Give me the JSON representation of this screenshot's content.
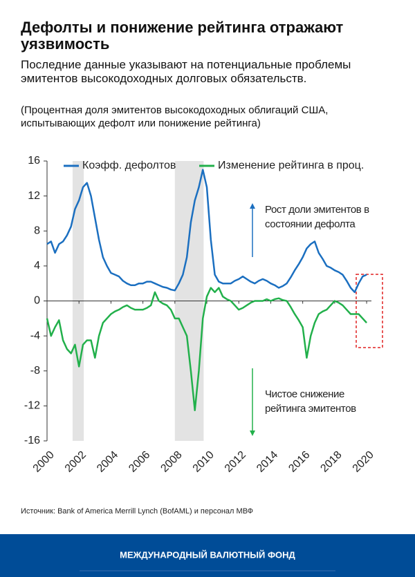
{
  "header": {
    "title": "Дефолты и понижение рейтинга отражают уязвимость",
    "subtitle": "Последние данные указывают на потенциальные проблемы эмитентов высокодоходных долговых обязательств.",
    "note": "(Процентная доля эмитентов высокодоходных облигаций США, испытывающих дефолт или понижение рейтинга)"
  },
  "chart_data": {
    "type": "line",
    "x": [
      2000,
      2000.25,
      2000.5,
      2000.75,
      2001,
      2001.25,
      2001.5,
      2001.75,
      2002,
      2002.25,
      2002.5,
      2002.75,
      2003,
      2003.25,
      2003.5,
      2003.75,
      2004,
      2004.25,
      2004.5,
      2004.75,
      2005,
      2005.25,
      2005.5,
      2005.75,
      2006,
      2006.25,
      2006.5,
      2006.75,
      2007,
      2007.25,
      2007.5,
      2007.75,
      2008,
      2008.25,
      2008.5,
      2008.75,
      2009,
      2009.25,
      2009.5,
      2009.75,
      2010,
      2010.25,
      2010.5,
      2010.75,
      2011,
      2011.25,
      2011.5,
      2011.75,
      2012,
      2012.25,
      2012.5,
      2012.75,
      2013,
      2013.25,
      2013.5,
      2013.75,
      2014,
      2014.25,
      2014.5,
      2014.75,
      2015,
      2015.25,
      2015.5,
      2015.75,
      2016,
      2016.25,
      2016.5,
      2016.75,
      2017,
      2017.25,
      2017.5,
      2017.75,
      2018,
      2018.25,
      2018.5,
      2018.75,
      2019,
      2019.25,
      2019.5,
      2019.75,
      2020
    ],
    "series": [
      {
        "name": "Коэфф. дефолтов",
        "color": "#1b6fc0",
        "values": [
          6.5,
          6.8,
          5.5,
          6.5,
          6.8,
          7.5,
          8.5,
          10.5,
          11.5,
          13,
          13.5,
          12,
          9.5,
          7,
          5,
          4,
          3.2,
          3,
          2.8,
          2.3,
          2,
          1.8,
          1.8,
          2,
          2,
          2.2,
          2.2,
          2,
          1.8,
          1.6,
          1.5,
          1.3,
          1.2,
          2,
          3,
          5,
          9,
          11.5,
          13,
          15,
          13,
          7,
          3,
          2.2,
          2,
          2,
          2,
          2.3,
          2.5,
          2.8,
          2.5,
          2.2,
          2,
          2.3,
          2.5,
          2.3,
          2,
          1.8,
          1.5,
          1.7,
          2,
          2.7,
          3.5,
          4.2,
          5,
          6,
          6.5,
          6.8,
          5.5,
          4.8,
          4,
          3.8,
          3.5,
          3.3,
          3,
          2.3,
          1.5,
          1,
          2,
          2.8,
          3
        ]
      },
      {
        "name": "Изменение рейтинга в проц.",
        "color": "#22b04b",
        "values": [
          -2,
          -4,
          -3,
          -2.2,
          -4.5,
          -5.5,
          -6,
          -5,
          -7.5,
          -5,
          -4.5,
          -4.5,
          -6.5,
          -4,
          -2.5,
          -2,
          -1.5,
          -1.2,
          -1,
          -0.7,
          -0.5,
          -0.8,
          -1,
          -1,
          -1,
          -0.8,
          -0.5,
          1,
          0,
          -0.3,
          -0.5,
          -1,
          -2,
          -2,
          -3,
          -4,
          -8,
          -12.5,
          -8,
          -2,
          0.5,
          1.5,
          1,
          1.5,
          0.5,
          0.2,
          0,
          -0.5,
          -1,
          -0.8,
          -0.5,
          -0.2,
          0,
          0,
          0,
          0.2,
          0,
          0.2,
          0.3,
          0.1,
          0,
          -0.7,
          -1.5,
          -2.2,
          -3,
          -6.5,
          -4,
          -2.5,
          -1.5,
          -1.2,
          -1,
          -0.5,
          0,
          -0.2,
          -0.5,
          -1,
          -1.5,
          -1.5,
          -1.5,
          -2,
          -2.5
        ]
      }
    ],
    "shaded_regions": [
      [
        2001.6,
        2002.3
      ],
      [
        2008.0,
        2009.8
      ]
    ],
    "xlim": [
      2000,
      2020.3
    ],
    "xticks": [
      2000,
      2002,
      2004,
      2006,
      2008,
      2010,
      2012,
      2014,
      2016,
      2018,
      2020
    ],
    "ylim": [
      -16,
      16
    ],
    "yticks": [
      -16,
      -12,
      -8,
      -4,
      0,
      4,
      8,
      12,
      16
    ],
    "annotations": [
      "Рост доли эмитентов в состоянии дефолта",
      "Чистое снижение рейтинга эмитентов"
    ],
    "source": "Источник:  Bank of America Merrill Lynch (BofAML) и персонал МВФ"
  },
  "footer": {
    "text": "МЕЖДУНАРОДНЫЙ ВАЛЮТНЫЙ ФОНД"
  }
}
